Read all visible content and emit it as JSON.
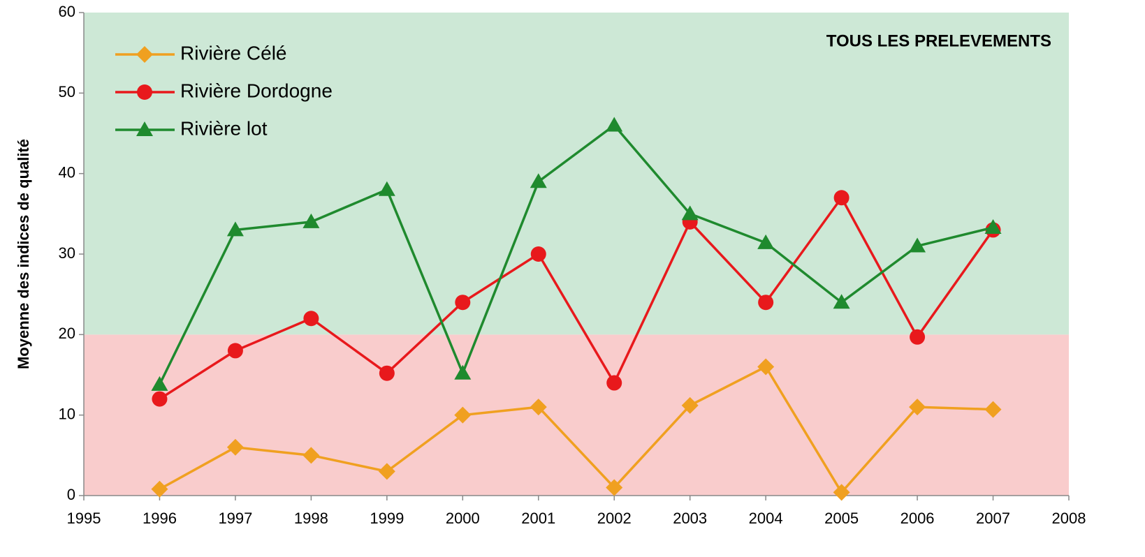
{
  "chart_data": {
    "type": "line",
    "annotation": "TOUS LES PRELEVEMENTS",
    "y_label": "Moyenne des indices de qualité",
    "x": [
      1996,
      1997,
      1998,
      1999,
      2000,
      2001,
      2002,
      2003,
      2004,
      2005,
      2006,
      2007
    ],
    "series": [
      {
        "name": "Rivière Célé",
        "color": "#f0a020",
        "marker": "diamond",
        "values": [
          0.8,
          6,
          5,
          3,
          10,
          11,
          1,
          11.2,
          16,
          0.4,
          11,
          10.7
        ]
      },
      {
        "name": "Rivière Dordogne",
        "color": "#e8191c",
        "marker": "circle",
        "values": [
          12,
          18,
          22,
          15.2,
          24,
          30,
          14,
          34,
          24,
          37,
          19.7,
          33
        ]
      },
      {
        "name": "Rivière lot",
        "color": "#1f8a2e",
        "marker": "triangle",
        "values": [
          13.8,
          33,
          34,
          38,
          15.2,
          39,
          46,
          35,
          31.4,
          24,
          31,
          33.3
        ]
      }
    ],
    "bands": [
      {
        "from": 0,
        "to": 20,
        "color": "#f9cccc"
      },
      {
        "from": 20,
        "to": 60,
        "color": "#cde8d6"
      }
    ],
    "xlim": [
      1995,
      2008
    ],
    "xticks": [
      1995,
      1996,
      1997,
      1998,
      1999,
      2000,
      2001,
      2002,
      2003,
      2004,
      2005,
      2006,
      2007,
      2008
    ],
    "ylim": [
      0,
      60
    ],
    "yticks": [
      0,
      10,
      20,
      30,
      40,
      50,
      60
    ],
    "legend": "top-left"
  }
}
